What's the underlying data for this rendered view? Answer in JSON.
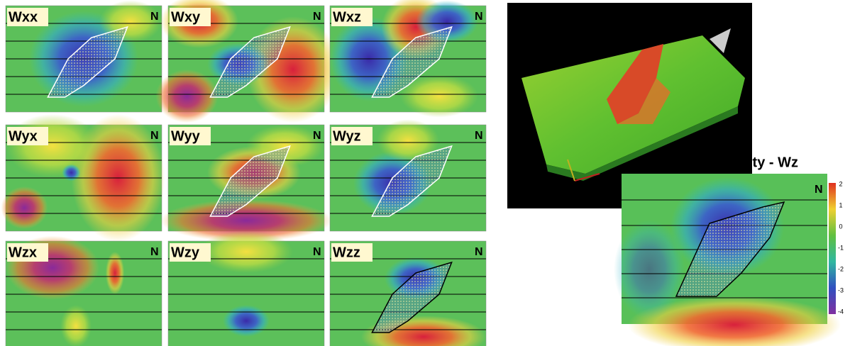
{
  "panels": [
    {
      "label": "Wxx"
    },
    {
      "label": "Wxy"
    },
    {
      "label": "Wxz"
    },
    {
      "label": "Wyx"
    },
    {
      "label": "Wyy"
    },
    {
      "label": "Wyz"
    },
    {
      "label": "Wzx"
    },
    {
      "label": "Wzy"
    },
    {
      "label": "Wzz"
    }
  ],
  "north_label": "N",
  "large_map": {
    "title": "ity - Wz",
    "colorbar_labels": [
      "2",
      "1",
      "0",
      "-1",
      "-2",
      "-3",
      "-4"
    ]
  }
}
